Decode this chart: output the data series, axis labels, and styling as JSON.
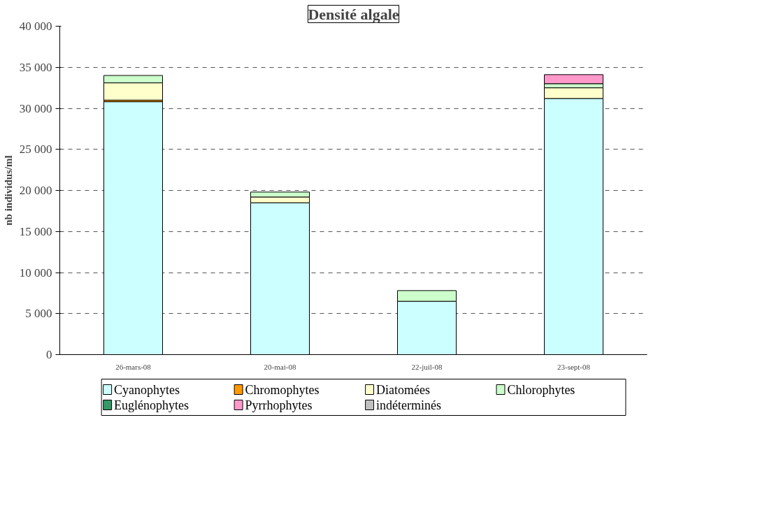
{
  "chart_data": {
    "type": "bar",
    "title": "Densité algale",
    "ylabel": "nb individus/ml",
    "stacked": true,
    "categories": [
      "26-mars-08",
      "20-mai-08",
      "22-juil-08",
      "23-sept-08"
    ],
    "series": [
      {
        "name": "Cyanophytes",
        "color": "#ccffff",
        "values": [
          30800,
          18500,
          6500,
          31200
        ]
      },
      {
        "name": "Chromophytes",
        "color": "#ff9900",
        "values": [
          200,
          null,
          null,
          null
        ]
      },
      {
        "name": "Diatomées",
        "color": "#ffffcc",
        "values": [
          2100,
          700,
          null,
          1300
        ]
      },
      {
        "name": "Chlorophytes",
        "color": "#ccffcc",
        "values": [
          900,
          600,
          1300,
          500
        ]
      },
      {
        "name": "Euglénophytes",
        "color": "#339966",
        "values": [
          null,
          null,
          null,
          null
        ]
      },
      {
        "name": "Pyrrhophytes",
        "color": "#ff99cc",
        "values": [
          null,
          null,
          null,
          1100
        ]
      },
      {
        "name": "indéterminés",
        "color": "#c0c0c0",
        "values": [
          null,
          null,
          null,
          null
        ]
      }
    ],
    "ylim": [
      0,
      40000
    ],
    "yticks": [
      0,
      {
        "value": 5000,
        "label": "5 000"
      },
      {
        "value": 10000,
        "label": "10 000"
      },
      {
        "value": 15000,
        "label": "15 000"
      },
      {
        "value": 20000,
        "label": "20 000"
      },
      {
        "value": 25000,
        "label": "25 000"
      },
      {
        "value": 30000,
        "label": "30 000"
      },
      {
        "value": 35000,
        "label": "35 000"
      },
      {
        "value": 40000,
        "label": "40 000"
      }
    ],
    "grid": "y",
    "legend": "bottom"
  }
}
